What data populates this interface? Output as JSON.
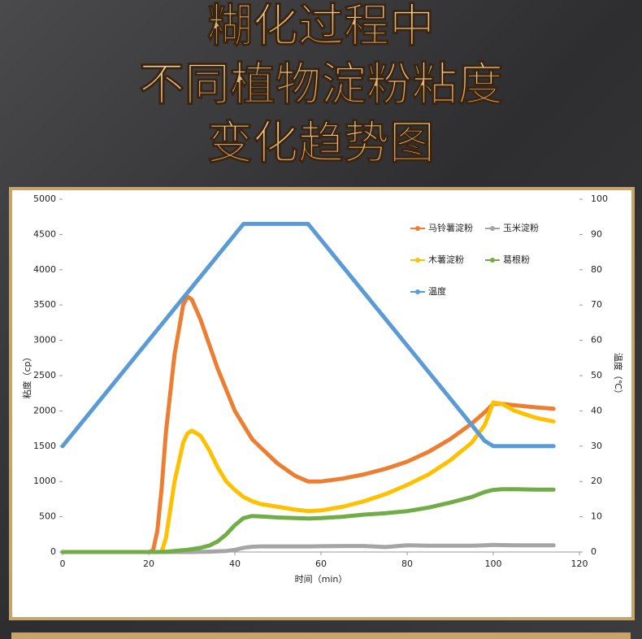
{
  "chart_data": {
    "type": "line",
    "title": [
      "糊化过程中",
      "不同植物淀粉粘度",
      "变化趋势图"
    ],
    "x_label": "时间（min）",
    "y_label": "粘度（cp）",
    "y2_label": "温度（℃）",
    "x": [
      0,
      10,
      20,
      21,
      22,
      23,
      24,
      26,
      28,
      29,
      30,
      32,
      34,
      36,
      38,
      40,
      42,
      44,
      46,
      50,
      54,
      57,
      60,
      65,
      70,
      75,
      80,
      85,
      90,
      95,
      98,
      100,
      102,
      105,
      110,
      114
    ],
    "xlim": [
      0,
      120
    ],
    "xticks": [
      0,
      20,
      40,
      60,
      80,
      100,
      120
    ],
    "ylim": [
      0,
      5000
    ],
    "yticks": [
      0,
      500,
      1000,
      1500,
      2000,
      2500,
      3000,
      3500,
      4000,
      4500,
      5000
    ],
    "y2lim": [
      0,
      100
    ],
    "y2ticks": [
      0,
      10,
      20,
      30,
      40,
      50,
      60,
      70,
      80,
      90,
      100
    ],
    "legend": "upper right",
    "series": [
      {
        "name": "马铃薯淀粉",
        "color": "#ed7d31",
        "values": [
          0,
          0,
          0,
          20,
          300,
          900,
          1700,
          2800,
          3500,
          3620,
          3580,
          3300,
          2950,
          2600,
          2300,
          2000,
          1800,
          1600,
          1480,
          1250,
          1080,
          1000,
          1000,
          1040,
          1100,
          1180,
          1280,
          1420,
          1600,
          1820,
          1980,
          2100,
          2100,
          2080,
          2050,
          2030
        ]
      },
      {
        "name": "玉米淀粉",
        "color": "#a5a5a5",
        "values": [
          0,
          0,
          0,
          0,
          0,
          0,
          0,
          0,
          0,
          0,
          0,
          2,
          5,
          10,
          15,
          30,
          60,
          75,
          80,
          80,
          80,
          80,
          82,
          85,
          85,
          70,
          95,
          90,
          90,
          90,
          95,
          100,
          98,
          95,
          95,
          95
        ]
      },
      {
        "name": "木薯淀粉",
        "color": "#ffc000",
        "values": [
          0,
          0,
          0,
          0,
          0,
          0,
          200,
          1000,
          1550,
          1680,
          1720,
          1650,
          1450,
          1200,
          1000,
          880,
          780,
          720,
          680,
          640,
          600,
          580,
          590,
          640,
          720,
          820,
          950,
          1100,
          1300,
          1550,
          1800,
          2120,
          2100,
          2000,
          1900,
          1850
        ]
      },
      {
        "name": "葛根粉",
        "color": "#70ad47",
        "values": [
          0,
          0,
          0,
          0,
          0,
          2,
          5,
          15,
          25,
          30,
          40,
          60,
          90,
          150,
          250,
          380,
          480,
          510,
          505,
          490,
          480,
          475,
          480,
          500,
          530,
          550,
          580,
          630,
          700,
          780,
          850,
          880,
          890,
          890,
          885,
          885
        ]
      },
      {
        "name": "温度",
        "color": "#5b9bd5",
        "axis": "y2",
        "values": [
          30,
          45,
          60,
          61.5,
          63,
          64.5,
          66,
          69,
          72,
          73.5,
          75,
          78,
          81,
          84,
          87,
          90,
          93,
          93,
          93,
          93,
          93,
          93,
          88.5,
          81,
          73.5,
          66,
          58.5,
          51,
          43.5,
          36,
          31.5,
          30,
          30,
          30,
          30,
          30
        ]
      }
    ]
  }
}
